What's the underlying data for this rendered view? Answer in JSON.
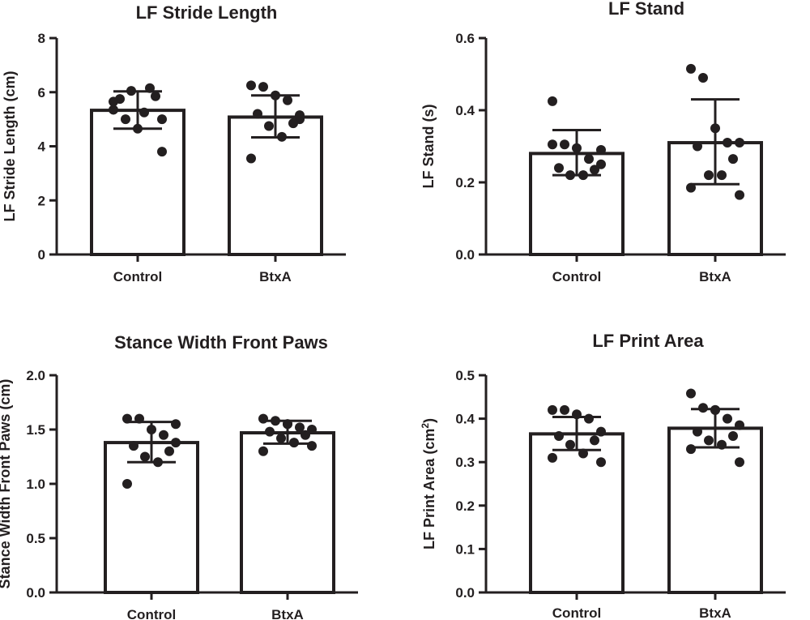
{
  "chart_data": [
    {
      "type": "bar",
      "title": "LF Stride Length",
      "ylabel": "LF Stride  Length (cm)",
      "ylabel_sup": "",
      "ylabel_tail": "",
      "categories": [
        "Control",
        "BtxA"
      ],
      "values": [
        5.33,
        5.08
      ],
      "error": [
        [
          4.65,
          6.03
        ],
        [
          4.33,
          5.88
        ]
      ],
      "points": [
        [
          5.35,
          5.0,
          4.65,
          6.15,
          3.8,
          5.75,
          5.85,
          6.05,
          5.25,
          5.65,
          5.0
        ],
        [
          6.25,
          6.2,
          5.88,
          5.7,
          5.0,
          5.2,
          4.85,
          4.75,
          4.35,
          3.55,
          5.15
        ]
      ],
      "ylim": [
        0,
        8
      ],
      "yticks": [
        "0",
        "2",
        "4",
        "6",
        "8"
      ],
      "grid": false,
      "legend": "none"
    },
    {
      "type": "bar",
      "title": "LF Stand",
      "ylabel": "LF Stand (s)",
      "ylabel_sup": "",
      "ylabel_tail": "",
      "categories": [
        "Control",
        "BtxA"
      ],
      "values": [
        0.28,
        0.31
      ],
      "error": [
        [
          0.22,
          0.345
        ],
        [
          0.195,
          0.43
        ]
      ],
      "points": [
        [
          0.425,
          0.305,
          0.295,
          0.265,
          0.25,
          0.24,
          0.235,
          0.22,
          0.22,
          0.305,
          0.29
        ],
        [
          0.515,
          0.49,
          0.35,
          0.31,
          0.31,
          0.3,
          0.265,
          0.22,
          0.22,
          0.185,
          0.165
        ]
      ],
      "ylim": [
        0,
        0.6
      ],
      "yticks": [
        "0.0",
        "0.2",
        "0.4",
        "0.6"
      ],
      "grid": false,
      "legend": "none"
    },
    {
      "type": "bar",
      "title": "Stance Width Front Paws",
      "ylabel": "Stance Width Front  Paws (cm)",
      "ylabel_sup": "",
      "ylabel_tail": "",
      "categories": [
        "Control",
        "BtxA"
      ],
      "values": [
        1.38,
        1.47
      ],
      "error": [
        [
          1.2,
          1.57
        ],
        [
          1.37,
          1.58
        ]
      ],
      "points": [
        [
          1.6,
          1.6,
          1.5,
          1.45,
          1.38,
          1.35,
          1.3,
          1.25,
          1.2,
          1.0,
          1.55
        ],
        [
          1.6,
          1.58,
          1.55,
          1.52,
          1.5,
          1.48,
          1.45,
          1.42,
          1.38,
          1.3,
          1.35,
          1.55
        ]
      ],
      "ylim": [
        0,
        2
      ],
      "yticks": [
        "0.0",
        "0.5",
        "1.0",
        "1.5",
        "2.0"
      ],
      "grid": false,
      "legend": "none"
    },
    {
      "type": "bar",
      "title": "LF Print Area",
      "ylabel": "LF Print Area (cm",
      "ylabel_sup": "2",
      "ylabel_tail": ")",
      "categories": [
        "Control",
        "BtxA"
      ],
      "values": [
        0.365,
        0.378
      ],
      "error": [
        [
          0.328,
          0.404
        ],
        [
          0.334,
          0.422
        ]
      ],
      "points": [
        [
          0.42,
          0.42,
          0.41,
          0.4,
          0.37,
          0.36,
          0.35,
          0.34,
          0.32,
          0.31,
          0.3
        ],
        [
          0.458,
          0.425,
          0.42,
          0.4,
          0.385,
          0.37,
          0.36,
          0.35,
          0.34,
          0.33,
          0.3,
          0.42
        ]
      ],
      "ylim": [
        0,
        0.5
      ],
      "yticks": [
        "0.0",
        "0.1",
        "0.2",
        "0.3",
        "0.4",
        "0.5"
      ],
      "grid": false,
      "legend": "none"
    }
  ],
  "colors": {
    "ink": "#231f20",
    "bar_fill": "#ffffff"
  }
}
